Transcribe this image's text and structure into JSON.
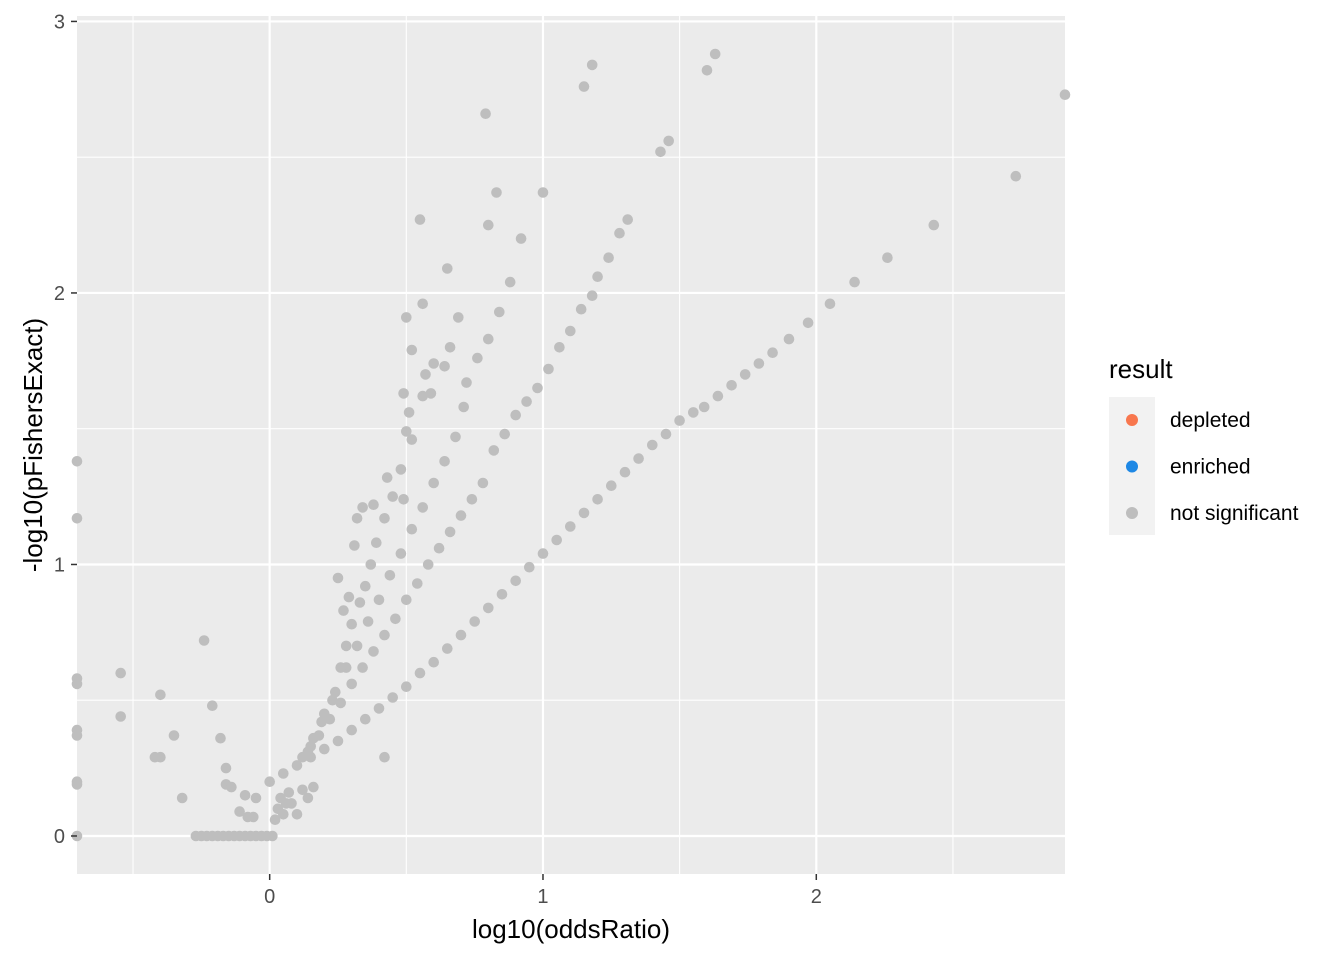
{
  "chart_data": {
    "type": "scatter",
    "title": "",
    "xlabel": "log10(oddsRatio)",
    "ylabel": "-log10(pFishersExact)",
    "xlim": [
      -0.705,
      2.91
    ],
    "ylim": [
      -0.14,
      3.02
    ],
    "x_ticks": [
      0,
      1,
      2
    ],
    "y_ticks": [
      0,
      1,
      2,
      3
    ],
    "grid": true,
    "legend_position": "right",
    "legend": {
      "title": "result",
      "entries": [
        {
          "label": "depleted",
          "color": "#F8774E"
        },
        {
          "label": "enriched",
          "color": "#1E88E5"
        },
        {
          "label": "not significant",
          "color": "#BEBEBE"
        }
      ]
    },
    "colors": {
      "panel_background": "#EBEBEB",
      "grid": "#FFFFFF",
      "not_significant": "#BEBEBE"
    },
    "series": [
      {
        "name": "not significant",
        "points": [
          [
            -0.705,
            1.38
          ],
          [
            -0.705,
            1.17
          ],
          [
            -0.705,
            0.58
          ],
          [
            -0.705,
            0.56
          ],
          [
            -0.705,
            0.39
          ],
          [
            -0.705,
            0.37
          ],
          [
            -0.705,
            0.2
          ],
          [
            -0.705,
            0.19
          ],
          [
            -0.705,
            0.0
          ],
          [
            -0.545,
            0.6
          ],
          [
            -0.545,
            0.44
          ],
          [
            -0.4,
            0.52
          ],
          [
            -0.42,
            0.29
          ],
          [
            -0.4,
            0.29
          ],
          [
            -0.35,
            0.37
          ],
          [
            -0.32,
            0.14
          ],
          [
            -0.24,
            0.72
          ],
          [
            -0.21,
            0.48
          ],
          [
            -0.18,
            0.36
          ],
          [
            -0.16,
            0.25
          ],
          [
            -0.16,
            0.19
          ],
          [
            -0.14,
            0.18
          ],
          [
            -0.11,
            0.09
          ],
          [
            -0.09,
            0.15
          ],
          [
            -0.08,
            0.07
          ],
          [
            -0.06,
            0.07
          ],
          [
            -0.05,
            0.14
          ],
          [
            -0.27,
            0.0
          ],
          [
            -0.25,
            0.0
          ],
          [
            -0.23,
            0.0
          ],
          [
            -0.21,
            0.0
          ],
          [
            -0.19,
            0.0
          ],
          [
            -0.17,
            0.0
          ],
          [
            -0.15,
            0.0
          ],
          [
            -0.13,
            0.0
          ],
          [
            -0.11,
            0.0
          ],
          [
            -0.09,
            0.0
          ],
          [
            -0.07,
            0.0
          ],
          [
            -0.05,
            0.0
          ],
          [
            -0.03,
            0.0
          ],
          [
            -0.01,
            0.0
          ],
          [
            0.01,
            0.0
          ],
          [
            0.02,
            0.06
          ],
          [
            0.03,
            0.1
          ],
          [
            0.04,
            0.14
          ],
          [
            0.05,
            0.08
          ],
          [
            0.06,
            0.12
          ],
          [
            0.07,
            0.16
          ],
          [
            0.08,
            0.12
          ],
          [
            0.1,
            0.08
          ],
          [
            0.12,
            0.17
          ],
          [
            0.14,
            0.14
          ],
          [
            0.16,
            0.18
          ],
          [
            0.42,
            0.29
          ],
          [
            0.0,
            0.2
          ],
          [
            0.05,
            0.23
          ],
          [
            0.1,
            0.26
          ],
          [
            0.15,
            0.29
          ],
          [
            0.2,
            0.32
          ],
          [
            0.25,
            0.35
          ],
          [
            0.3,
            0.39
          ],
          [
            0.35,
            0.43
          ],
          [
            0.4,
            0.47
          ],
          [
            0.45,
            0.51
          ],
          [
            0.5,
            0.55
          ],
          [
            0.55,
            0.6
          ],
          [
            0.6,
            0.64
          ],
          [
            0.65,
            0.69
          ],
          [
            0.7,
            0.74
          ],
          [
            0.75,
            0.79
          ],
          [
            0.8,
            0.84
          ],
          [
            0.85,
            0.89
          ],
          [
            0.9,
            0.94
          ],
          [
            0.95,
            0.99
          ],
          [
            1.0,
            1.04
          ],
          [
            1.05,
            1.09
          ],
          [
            1.1,
            1.14
          ],
          [
            1.15,
            1.19
          ],
          [
            1.2,
            1.24
          ],
          [
            1.25,
            1.29
          ],
          [
            1.3,
            1.34
          ],
          [
            1.35,
            1.39
          ],
          [
            1.4,
            1.44
          ],
          [
            1.45,
            1.48
          ],
          [
            1.5,
            1.53
          ],
          [
            1.55,
            1.56
          ],
          [
            1.59,
            1.58
          ],
          [
            1.64,
            1.62
          ],
          [
            1.69,
            1.66
          ],
          [
            1.74,
            1.7
          ],
          [
            1.79,
            1.74
          ],
          [
            1.84,
            1.78
          ],
          [
            1.9,
            1.83
          ],
          [
            1.97,
            1.89
          ],
          [
            2.05,
            1.96
          ],
          [
            2.14,
            2.04
          ],
          [
            2.26,
            2.13
          ],
          [
            2.43,
            2.25
          ],
          [
            2.73,
            2.43
          ],
          [
            2.91,
            2.73
          ],
          [
            0.12,
            0.29
          ],
          [
            0.16,
            0.36
          ],
          [
            0.2,
            0.45
          ],
          [
            0.24,
            0.53
          ],
          [
            0.28,
            0.62
          ],
          [
            0.32,
            0.7
          ],
          [
            0.36,
            0.79
          ],
          [
            0.4,
            0.87
          ],
          [
            0.44,
            0.96
          ],
          [
            0.48,
            1.04
          ],
          [
            0.52,
            1.13
          ],
          [
            0.56,
            1.21
          ],
          [
            0.6,
            1.3
          ],
          [
            0.64,
            1.38
          ],
          [
            0.68,
            1.47
          ],
          [
            0.14,
            0.31
          ],
          [
            0.18,
            0.37
          ],
          [
            0.22,
            0.43
          ],
          [
            0.26,
            0.49
          ],
          [
            0.3,
            0.56
          ],
          [
            0.34,
            0.62
          ],
          [
            0.38,
            0.68
          ],
          [
            0.42,
            0.74
          ],
          [
            0.46,
            0.8
          ],
          [
            0.5,
            0.87
          ],
          [
            0.54,
            0.93
          ],
          [
            0.58,
            1.0
          ],
          [
            0.62,
            1.06
          ],
          [
            0.66,
            1.12
          ],
          [
            0.7,
            1.18
          ],
          [
            0.74,
            1.24
          ],
          [
            0.78,
            1.3
          ],
          [
            0.82,
            1.42
          ],
          [
            0.86,
            1.48
          ],
          [
            0.9,
            1.55
          ],
          [
            0.94,
            1.6
          ],
          [
            0.98,
            1.65
          ],
          [
            1.02,
            1.72
          ],
          [
            1.06,
            1.8
          ],
          [
            1.1,
            1.86
          ],
          [
            1.14,
            1.94
          ],
          [
            1.18,
            1.99
          ],
          [
            1.2,
            2.06
          ],
          [
            1.24,
            2.13
          ],
          [
            1.28,
            2.22
          ],
          [
            1.31,
            2.27
          ],
          [
            1.43,
            2.52
          ],
          [
            1.46,
            2.56
          ],
          [
            0.15,
            0.33
          ],
          [
            0.19,
            0.42
          ],
          [
            0.23,
            0.5
          ],
          [
            0.26,
            0.62
          ],
          [
            0.28,
            0.7
          ],
          [
            0.3,
            0.78
          ],
          [
            0.33,
            0.86
          ],
          [
            0.35,
            0.92
          ],
          [
            0.37,
            1.0
          ],
          [
            0.39,
            1.08
          ],
          [
            0.42,
            1.17
          ],
          [
            0.45,
            1.25
          ],
          [
            0.48,
            1.35
          ],
          [
            0.52,
            1.46
          ],
          [
            0.56,
            1.62
          ],
          [
            0.6,
            1.74
          ],
          [
            0.66,
            1.8
          ],
          [
            0.72,
            1.67
          ],
          [
            0.76,
            1.76
          ],
          [
            0.8,
            1.83
          ],
          [
            0.84,
            1.93
          ],
          [
            0.88,
            2.04
          ],
          [
            0.92,
            2.2
          ],
          [
            0.25,
            0.95
          ],
          [
            0.27,
            0.83
          ],
          [
            0.29,
            0.88
          ],
          [
            0.31,
            1.07
          ],
          [
            0.32,
            1.17
          ],
          [
            0.34,
            1.21
          ],
          [
            0.38,
            1.22
          ],
          [
            0.43,
            1.32
          ],
          [
            0.49,
            1.24
          ],
          [
            0.5,
            1.49
          ],
          [
            0.51,
            1.56
          ],
          [
            0.52,
            1.79
          ],
          [
            0.5,
            1.91
          ],
          [
            0.56,
            1.96
          ],
          [
            0.57,
            1.7
          ],
          [
            0.59,
            1.63
          ],
          [
            0.64,
            1.73
          ],
          [
            0.69,
            1.91
          ],
          [
            0.71,
            1.58
          ],
          [
            0.65,
            2.09
          ],
          [
            0.55,
            2.27
          ],
          [
            0.8,
            2.25
          ],
          [
            0.83,
            2.37
          ],
          [
            0.79,
            2.66
          ],
          [
            1.0,
            2.37
          ],
          [
            1.15,
            2.76
          ],
          [
            1.18,
            2.84
          ],
          [
            1.6,
            2.82
          ],
          [
            1.63,
            2.88
          ],
          [
            0.49,
            1.63
          ]
        ]
      }
    ]
  }
}
